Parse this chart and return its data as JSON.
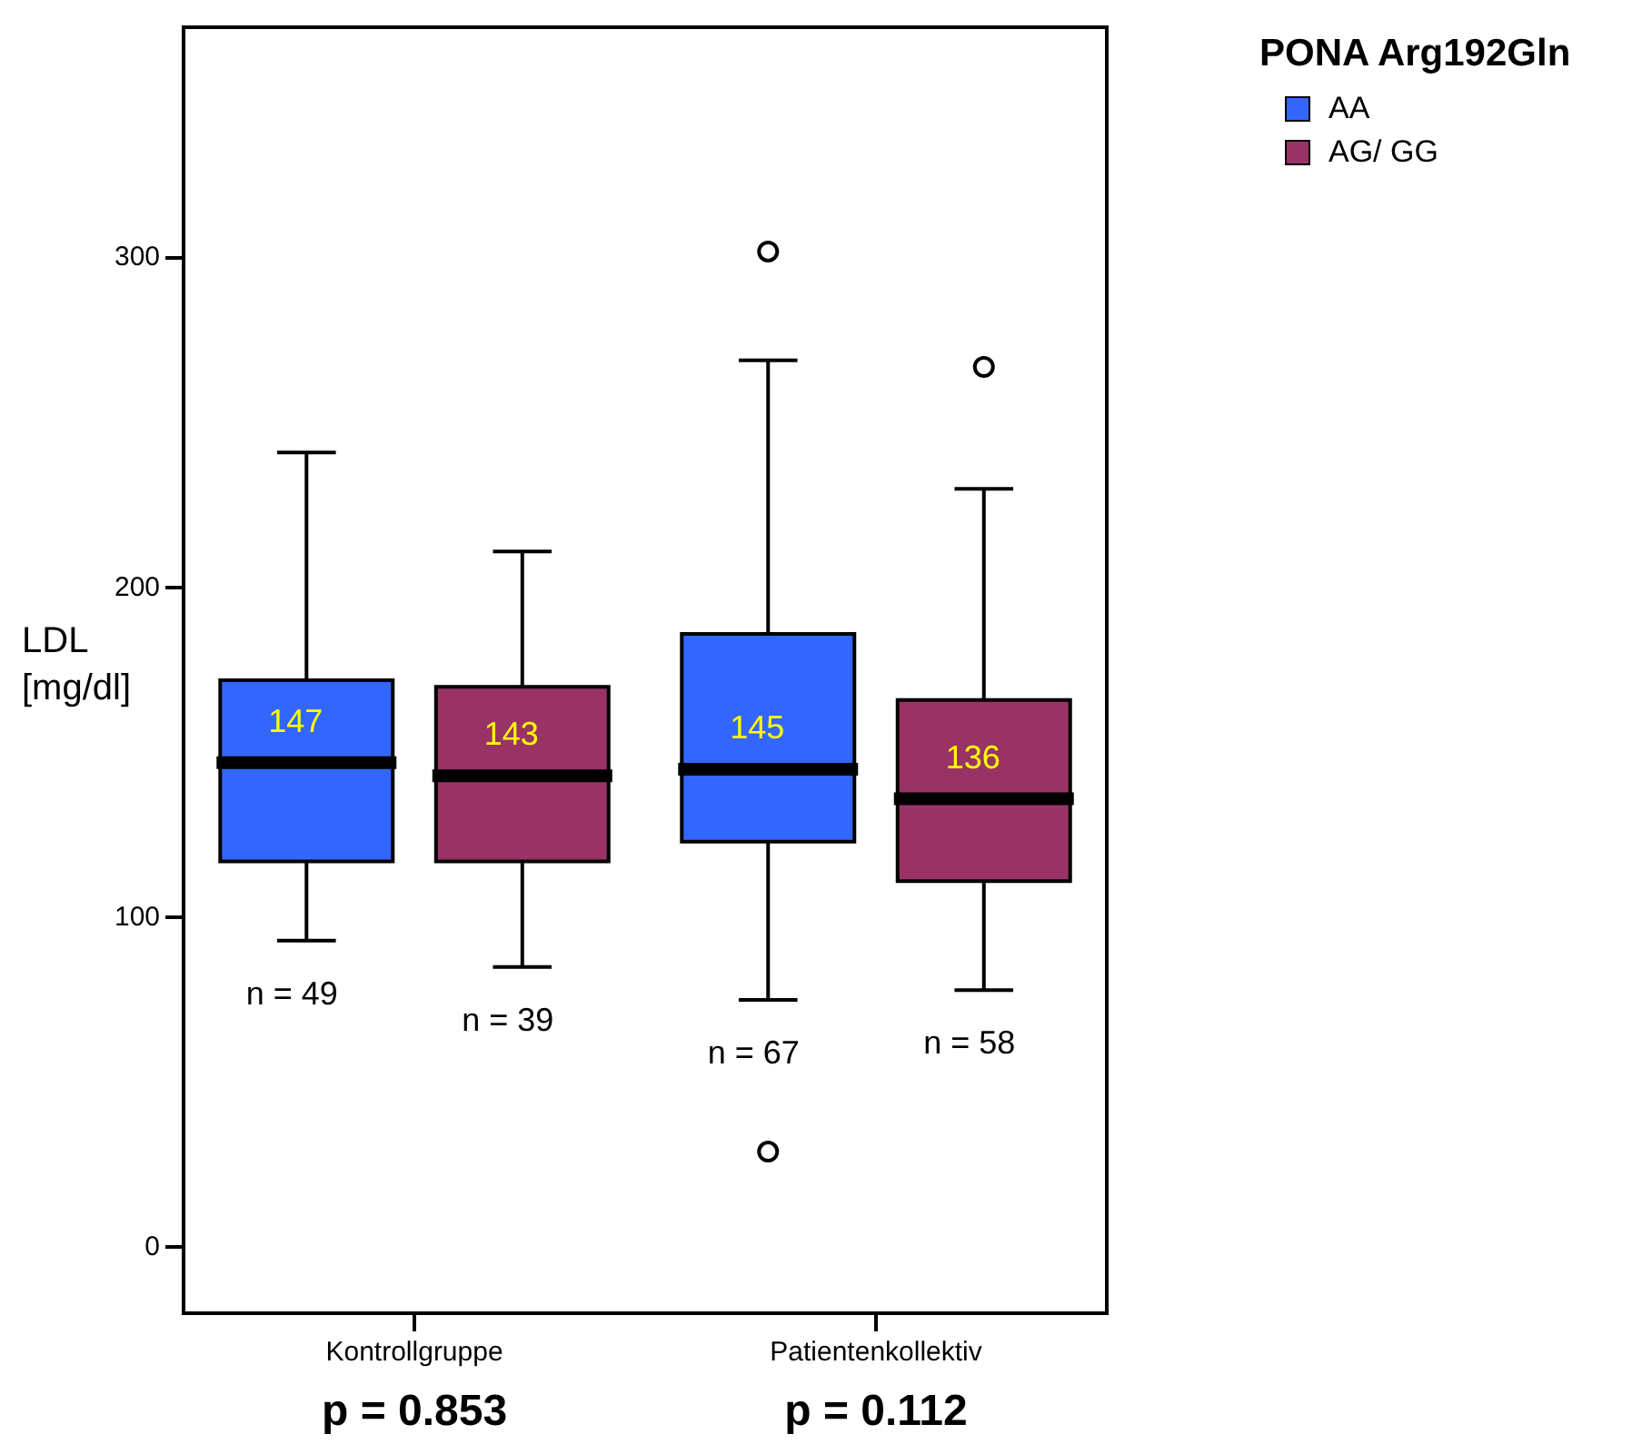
{
  "chart_data": {
    "type": "box",
    "ylabel": "LDL [mg/dl]",
    "legend_title": "PONA Arg192Gln",
    "categories": [
      "Kontrollgruppe",
      "Patientenkollektiv"
    ],
    "series": [
      {
        "name": "AA",
        "color": "#3366ff",
        "value_labels": [
          "147",
          "145"
        ],
        "boxes": [
          {
            "low": 93,
            "q1": 117,
            "median": 147,
            "q3": 172,
            "high": 241
          },
          {
            "low": 75,
            "q1": 123,
            "median": 145,
            "q3": 186,
            "high": 269,
            "outliers": [
              302,
              29
            ]
          }
        ]
      },
      {
        "name": "AG/ GG",
        "color": "#993366",
        "value_labels": [
          "143",
          "136"
        ],
        "boxes": [
          {
            "low": 85,
            "q1": 117,
            "median": 143,
            "q3": 170,
            "high": 211
          },
          {
            "low": 78,
            "q1": 111,
            "median": 136,
            "q3": 166,
            "high": 230,
            "outliers": [
              267
            ]
          }
        ]
      }
    ],
    "ylim": [
      -20,
      370
    ],
    "yticks": [
      0,
      100,
      200,
      300
    ],
    "grid": false,
    "legend": "top right",
    "annotations": [
      "n = 49",
      "n = 39",
      "n = 67",
      "n = 58",
      "p = 0.853",
      "p = 0.112"
    ]
  }
}
